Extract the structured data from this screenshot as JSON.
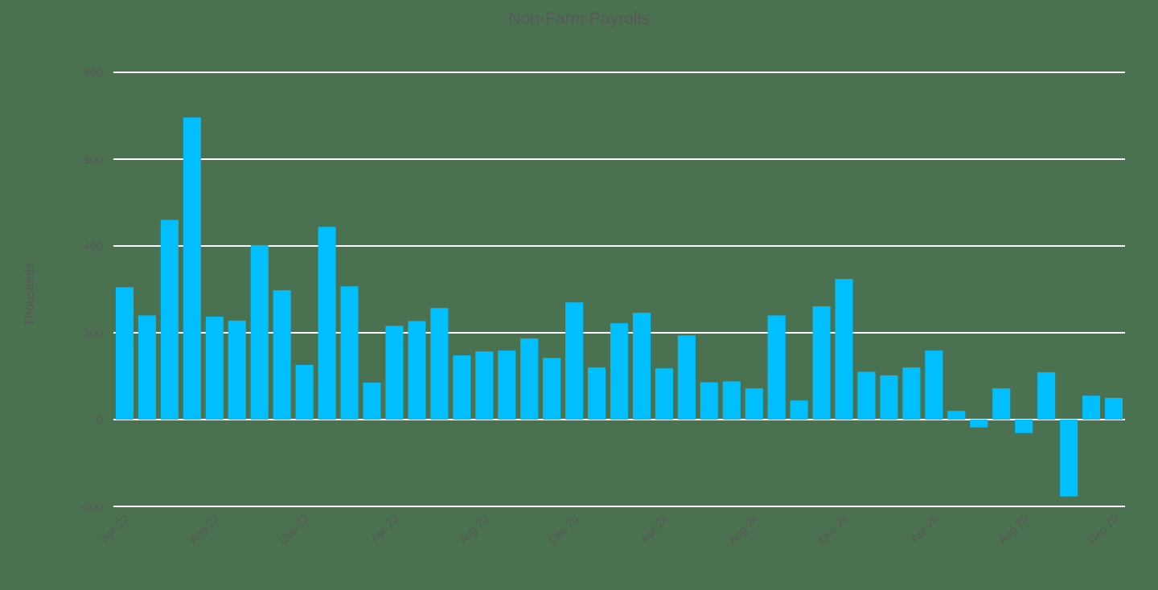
{
  "chart": {
    "title": "Non-Farm Payrolls",
    "ylabel": "Thousands"
  },
  "chart_data": {
    "type": "bar",
    "title": "Non-Farm Payrolls",
    "xlabel": "",
    "ylabel": "Thousands",
    "ylim": [
      -200,
      800
    ],
    "yticks": [
      -200,
      0,
      200,
      400,
      600,
      800
    ],
    "grid": true,
    "legend": null,
    "bar_color": "#00bfff",
    "background_color": "#4a7150",
    "text_color": "#595959",
    "gridline_color": "#ffffff",
    "xtick_labels": [
      "Apr-22",
      "Aug-22",
      "Dec-22",
      "Apr-23",
      "Aug-23",
      "Dec-23",
      "Apr-24",
      "Aug-24",
      "Dec-24",
      "Apr-25",
      "Aug-25",
      "Dec-25"
    ],
    "categories": [
      "Apr-22",
      "May-22",
      "Jun-22",
      "Jul-22",
      "Aug-22",
      "Sep-22",
      "Oct-22",
      "Nov-22",
      "Dec-22",
      "Jan-23",
      "Feb-23",
      "Mar-23",
      "Apr-23",
      "May-23",
      "Jun-23",
      "Jul-23",
      "Aug-23",
      "Sep-23",
      "Oct-23",
      "Nov-23",
      "Dec-23",
      "Jan-24",
      "Feb-24",
      "Mar-24",
      "Apr-24",
      "May-24",
      "Jun-24",
      "Jul-24",
      "Aug-24",
      "Sep-24",
      "Oct-24",
      "Nov-24",
      "Dec-24",
      "Jan-25",
      "Feb-25",
      "Mar-25",
      "Apr-25",
      "May-25",
      "Jun-25",
      "Jul-25",
      "Aug-25",
      "Sep-25",
      "Oct-25",
      "Nov-25",
      "Dec-25"
    ],
    "values": [
      305,
      240,
      460,
      696,
      237,
      228,
      402,
      298,
      126,
      444,
      307,
      85,
      216,
      227,
      257,
      148,
      157,
      159,
      187,
      142,
      270,
      120,
      222,
      246,
      118,
      194,
      86,
      88,
      72,
      240,
      44,
      261,
      324,
      110,
      102,
      120,
      159,
      20,
      -18,
      72,
      -31,
      109,
      -177,
      55,
      50
    ]
  }
}
